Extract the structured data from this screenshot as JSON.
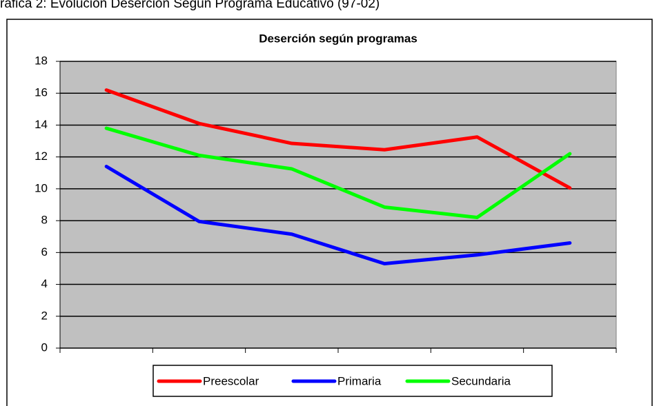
{
  "caption": "ráfica 2: Evolución Deserción Según Programa Educativo (97-02)",
  "chart_data": {
    "type": "line",
    "title": "Deserción según programas",
    "categories": [
      null,
      null,
      null,
      null,
      null,
      null
    ],
    "series": [
      {
        "name": "Preescolar",
        "color": "#ff0000",
        "values": [
          16.2,
          14.1,
          12.85,
          12.45,
          13.25,
          10.05
        ]
      },
      {
        "name": "Primaria",
        "color": "#0000ff",
        "values": [
          11.4,
          7.95,
          7.15,
          5.3,
          5.85,
          6.6
        ]
      },
      {
        "name": "Secundaria",
        "color": "#00ff00",
        "values": [
          13.8,
          12.1,
          11.25,
          8.85,
          8.2,
          12.2
        ]
      }
    ],
    "ylim": [
      0,
      18
    ],
    "yticks": [
      0,
      2,
      4,
      6,
      8,
      10,
      12,
      14,
      16,
      18
    ],
    "grid": true,
    "plot_background": "#c0c0c0",
    "legend": "bottom"
  }
}
